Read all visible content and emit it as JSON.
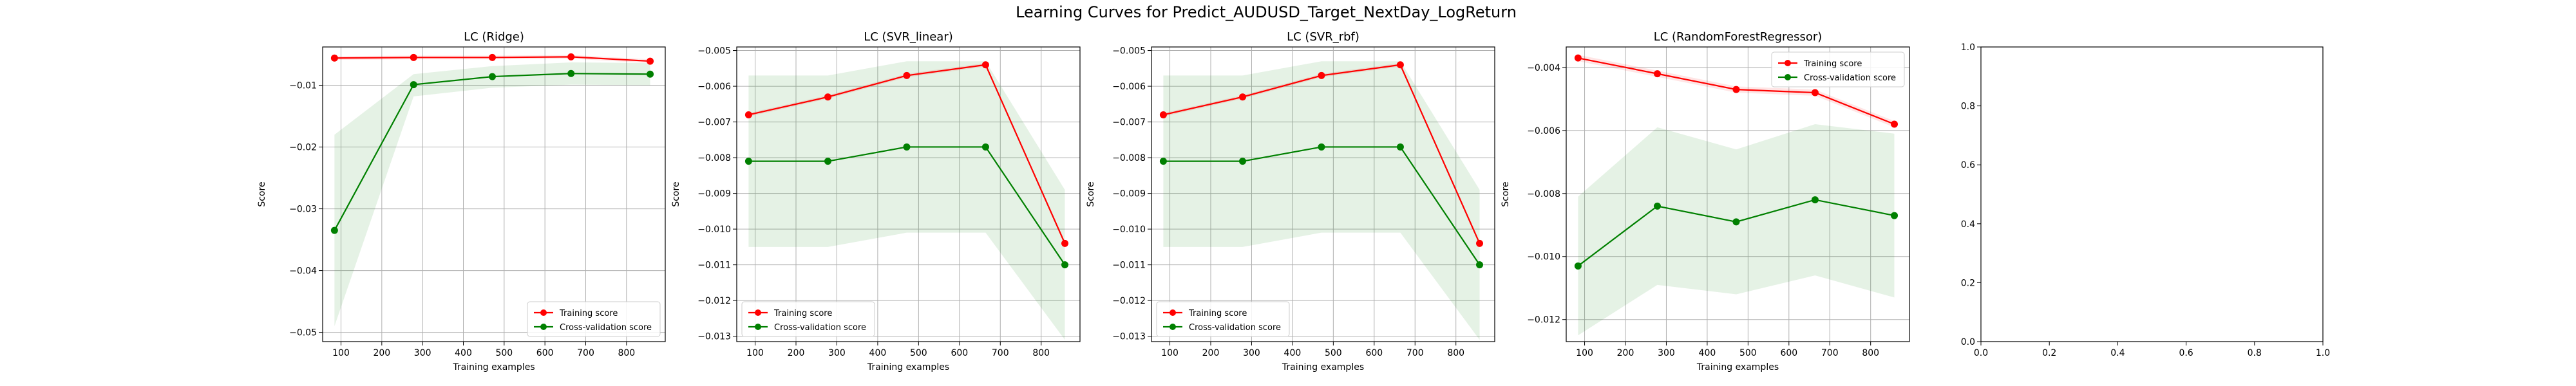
{
  "figure": {
    "title": "Learning Curves for Predict_AUDUSD_Target_NextDay_LogReturn"
  },
  "colors": {
    "train": "#ff0000",
    "cv": "#008000",
    "train_band": "#ff0000",
    "cv_band": "#008000",
    "grid": "#b0b0b0"
  },
  "chart_data": [
    {
      "type": "line",
      "title": "LC (Ridge)",
      "xlabel": "Training examples",
      "ylabel": "Score",
      "grid": true,
      "legend_position": "lower-right",
      "xlim": [
        55,
        895
      ],
      "ylim": [
        -0.0515,
        -0.0038
      ],
      "xticks": [
        100,
        200,
        300,
        400,
        500,
        600,
        700,
        800
      ],
      "yticks": [
        -0.05,
        -0.04,
        -0.03,
        -0.02,
        -0.01
      ],
      "ytick_labels": [
        "−0.05",
        "−0.04",
        "−0.03",
        "−0.02",
        "−0.01"
      ],
      "x": [
        84,
        278,
        471,
        664,
        858
      ],
      "series": [
        {
          "name": "Training score",
          "values": [
            -0.0056,
            -0.0055,
            -0.0055,
            -0.0054,
            -0.0061
          ],
          "band": [
            [
              -0.0059,
              -0.0053
            ],
            [
              -0.0058,
              -0.0052
            ],
            [
              -0.0058,
              -0.0052
            ],
            [
              -0.0057,
              -0.0051
            ],
            [
              -0.0064,
              -0.0058
            ]
          ]
        },
        {
          "name": "Cross-validation score",
          "values": [
            -0.0335,
            -0.0099,
            -0.0086,
            -0.0081,
            -0.0082
          ],
          "band": [
            [
              -0.049,
              -0.018
            ],
            [
              -0.0118,
              -0.0082
            ],
            [
              -0.0104,
              -0.0069
            ],
            [
              -0.0099,
              -0.0063
            ],
            [
              -0.01,
              -0.0064
            ]
          ]
        }
      ]
    },
    {
      "type": "line",
      "title": "LC (SVR_linear)",
      "xlabel": "Training examples",
      "ylabel": "Score",
      "grid": true,
      "legend_position": "lower-left",
      "xlim": [
        55,
        895
      ],
      "ylim": [
        -0.01315,
        -0.0049
      ],
      "xticks": [
        100,
        200,
        300,
        400,
        500,
        600,
        700,
        800
      ],
      "yticks": [
        -0.013,
        -0.012,
        -0.011,
        -0.01,
        -0.009,
        -0.008,
        -0.007,
        -0.006,
        -0.005
      ],
      "ytick_labels": [
        "−0.013",
        "−0.012",
        "−0.011",
        "−0.010",
        "−0.009",
        "−0.008",
        "−0.007",
        "−0.006",
        "−0.005"
      ],
      "x": [
        84,
        278,
        471,
        664,
        858
      ],
      "series": [
        {
          "name": "Training score",
          "values": [
            -0.0068,
            -0.0063,
            -0.0057,
            -0.0054,
            -0.0104
          ],
          "band": [
            [
              -0.00685,
              -0.00675
            ],
            [
              -0.00635,
              -0.00625
            ],
            [
              -0.00575,
              -0.00565
            ],
            [
              -0.00545,
              -0.00535
            ],
            [
              -0.01045,
              -0.01035
            ]
          ]
        },
        {
          "name": "Cross-validation score",
          "values": [
            -0.0081,
            -0.0081,
            -0.0077,
            -0.0077,
            -0.011
          ],
          "band": [
            [
              -0.0105,
              -0.0057
            ],
            [
              -0.0105,
              -0.0057
            ],
            [
              -0.0101,
              -0.0053
            ],
            [
              -0.0101,
              -0.0053
            ],
            [
              -0.0131,
              -0.0089
            ]
          ]
        }
      ]
    },
    {
      "type": "line",
      "title": "LC (SVR_rbf)",
      "xlabel": "Training examples",
      "ylabel": "Score",
      "grid": true,
      "legend_position": "lower-left",
      "xlim": [
        55,
        895
      ],
      "ylim": [
        -0.01315,
        -0.0049
      ],
      "xticks": [
        100,
        200,
        300,
        400,
        500,
        600,
        700,
        800
      ],
      "yticks": [
        -0.013,
        -0.012,
        -0.011,
        -0.01,
        -0.009,
        -0.008,
        -0.007,
        -0.006,
        -0.005
      ],
      "ytick_labels": [
        "−0.013",
        "−0.012",
        "−0.011",
        "−0.010",
        "−0.009",
        "−0.008",
        "−0.007",
        "−0.006",
        "−0.005"
      ],
      "x": [
        84,
        278,
        471,
        664,
        858
      ],
      "series": [
        {
          "name": "Training score",
          "values": [
            -0.0068,
            -0.0063,
            -0.0057,
            -0.0054,
            -0.0104
          ],
          "band": [
            [
              -0.00685,
              -0.00675
            ],
            [
              -0.00635,
              -0.00625
            ],
            [
              -0.00575,
              -0.00565
            ],
            [
              -0.00545,
              -0.00535
            ],
            [
              -0.01045,
              -0.01035
            ]
          ]
        },
        {
          "name": "Cross-validation score",
          "values": [
            -0.0081,
            -0.0081,
            -0.0077,
            -0.0077,
            -0.011
          ],
          "band": [
            [
              -0.0105,
              -0.0057
            ],
            [
              -0.0105,
              -0.0057
            ],
            [
              -0.0101,
              -0.0053
            ],
            [
              -0.0101,
              -0.0053
            ],
            [
              -0.0131,
              -0.0089
            ]
          ]
        }
      ]
    },
    {
      "type": "line",
      "title": "LC (RandomForestRegressor)",
      "xlabel": "Training examples",
      "ylabel": "Score",
      "grid": true,
      "legend_position": "upper-right",
      "xlim": [
        55,
        895
      ],
      "ylim": [
        -0.0127,
        -0.00335
      ],
      "xticks": [
        100,
        200,
        300,
        400,
        500,
        600,
        700,
        800
      ],
      "yticks": [
        -0.012,
        -0.01,
        -0.008,
        -0.006,
        -0.004
      ],
      "ytick_labels": [
        "−0.012",
        "−0.010",
        "−0.008",
        "−0.006",
        "−0.004"
      ],
      "x": [
        84,
        278,
        471,
        664,
        858
      ],
      "series": [
        {
          "name": "Training score",
          "values": [
            -0.0037,
            -0.0042,
            -0.0047,
            -0.0048,
            -0.0058
          ],
          "band": [
            [
              -0.0038,
              -0.0036
            ],
            [
              -0.0043,
              -0.0041
            ],
            [
              -0.0048,
              -0.0046
            ],
            [
              -0.0049,
              -0.0047
            ],
            [
              -0.0059,
              -0.0057
            ]
          ]
        },
        {
          "name": "Cross-validation score",
          "values": [
            -0.0103,
            -0.0084,
            -0.0089,
            -0.0082,
            -0.0087
          ],
          "band": [
            [
              -0.0125,
              -0.0081
            ],
            [
              -0.0109,
              -0.0059
            ],
            [
              -0.0112,
              -0.0066
            ],
            [
              -0.0106,
              -0.0058
            ],
            [
              -0.0113,
              -0.0061
            ]
          ]
        }
      ]
    },
    {
      "type": "line",
      "title": "",
      "xlabel": "",
      "ylabel": "",
      "grid": false,
      "xlim": [
        0,
        1
      ],
      "ylim": [
        0,
        1
      ],
      "xticks": [
        0,
        0.2,
        0.4,
        0.6,
        0.8,
        1.0
      ],
      "yticks": [
        0,
        0.2,
        0.4,
        0.6,
        0.8,
        1.0
      ],
      "xtick_labels": [
        "0.0",
        "0.2",
        "0.4",
        "0.6",
        "0.8",
        "1.0"
      ],
      "ytick_labels": [
        "0.0",
        "0.2",
        "0.4",
        "0.6",
        "0.8",
        "1.0"
      ],
      "x": [],
      "series": []
    }
  ]
}
